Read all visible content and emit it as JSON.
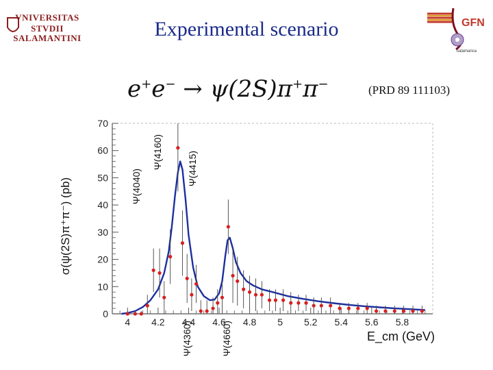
{
  "slide": {
    "title": "Experimental scenario",
    "logo_left": {
      "line1": "VNIVERSITAS",
      "line2": "STVDII",
      "line3": "SALAMANTINI"
    },
    "logo_right": {
      "text": "GFN",
      "subtext": "Salamanca"
    },
    "equation": {
      "lhs_1": "e",
      "lhs_sup_1": "+",
      "lhs_2": "e",
      "lhs_sup_2": "−",
      "arrow": "→",
      "rhs": "ψ(2S)π",
      "rhs_sup_1": "+",
      "rhs_2": "π",
      "rhs_sup_2": "−"
    },
    "reference": "(PRD 89 111103)",
    "resonances": [
      {
        "label": "Ψ(4040)",
        "position_gev": 4.04,
        "side": "top"
      },
      {
        "label": "Ψ(4160)",
        "position_gev": 4.16,
        "side": "top"
      },
      {
        "label": "Ψ(4415)",
        "position_gev": 4.415,
        "side": "top"
      },
      {
        "label": "Ψ(4360)",
        "position_gev": 4.36,
        "side": "bottom"
      },
      {
        "label": "Ψ(4660)",
        "position_gev": 4.66,
        "side": "bottom"
      }
    ]
  },
  "chart_data": {
    "type": "scatter",
    "xlabel": "E_cm (GeV)",
    "ylabel": "σ(ψ(2S)π⁺π⁻) (pb)",
    "xlim": [
      3.9,
      6.0
    ],
    "ylim": [
      0,
      70
    ],
    "xticks": [
      4,
      4.2,
      4.4,
      4.6,
      4.8,
      5,
      5.2,
      5.4,
      5.6,
      5.8
    ],
    "xtick_labels": [
      "4",
      "4.2",
      "4.4",
      "4.6",
      "4.8",
      "5",
      "5.2",
      "5.4",
      "5.6",
      "5.8"
    ],
    "yticks": [
      0,
      10,
      20,
      30,
      40,
      50,
      60,
      70
    ],
    "ytick_labels": [
      "0",
      "10",
      "20",
      "30",
      "40",
      "50",
      "60",
      "70"
    ],
    "grid": false,
    "colors": {
      "points": "#d62020",
      "fit": "#1b2fa0",
      "axis": "#555555"
    },
    "series": [
      {
        "kind": "data_points",
        "x": [
          4.0,
          4.05,
          4.09,
          4.13,
          4.17,
          4.21,
          4.24,
          4.28,
          4.33,
          4.36,
          4.39,
          4.42,
          4.45,
          4.48,
          4.52,
          4.56,
          4.59,
          4.62,
          4.66,
          4.69,
          4.72,
          4.76,
          4.8,
          4.84,
          4.88,
          4.93,
          4.97,
          5.02,
          5.07,
          5.12,
          5.17,
          5.22,
          5.27,
          5.33,
          5.39,
          5.45,
          5.51,
          5.57,
          5.63,
          5.69,
          5.75,
          5.81,
          5.87,
          5.93
        ],
        "y": [
          0,
          0,
          0,
          3,
          16,
          15,
          6,
          21,
          61,
          26,
          13,
          7,
          11,
          1,
          1,
          2,
          4,
          6,
          32,
          14,
          12,
          9,
          8,
          7,
          7,
          5,
          5,
          5,
          4,
          4,
          4,
          3,
          3,
          3,
          2,
          2,
          2,
          2,
          1,
          1,
          1,
          1,
          1,
          1
        ],
        "err": [
          1,
          1,
          1,
          4,
          8,
          9,
          6,
          10,
          16,
          12,
          9,
          6,
          7,
          4,
          4,
          4,
          5,
          6,
          10,
          10,
          9,
          7,
          6,
          6,
          5,
          4,
          4,
          4,
          4,
          3,
          3,
          3,
          3,
          3,
          2,
          2,
          2,
          2,
          2,
          2,
          2,
          2,
          2,
          2
        ]
      },
      {
        "kind": "fit_curve",
        "x": [
          3.96,
          4.0,
          4.05,
          4.1,
          4.15,
          4.2,
          4.24,
          4.27,
          4.29,
          4.31,
          4.33,
          4.345,
          4.36,
          4.38,
          4.4,
          4.43,
          4.46,
          4.5,
          4.54,
          4.57,
          4.6,
          4.62,
          4.64,
          4.655,
          4.67,
          4.69,
          4.71,
          4.74,
          4.78,
          4.82,
          4.88,
          4.95,
          5.05,
          5.15,
          5.25,
          5.35,
          5.45,
          5.55,
          5.65,
          5.75,
          5.85,
          5.95
        ],
        "y": [
          0,
          0.3,
          1,
          2.5,
          5,
          9,
          15,
          23,
          32,
          43,
          52,
          56,
          53,
          42,
          29,
          17,
          10,
          6.5,
          5,
          5.2,
          7.5,
          12,
          21,
          27,
          28,
          24,
          19,
          15,
          12,
          10.5,
          9,
          8,
          6.5,
          5.5,
          4.6,
          3.9,
          3.3,
          2.8,
          2.4,
          2.0,
          1.7,
          1.4
        ]
      }
    ]
  }
}
